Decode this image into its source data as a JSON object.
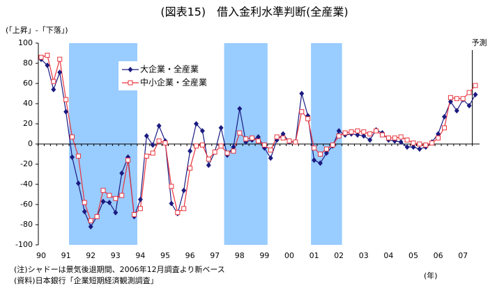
{
  "chart_data": {
    "type": "line",
    "title": "(図表15)　借入金利水準判断(全産業)",
    "y_label": "(「上昇」-「下落」)",
    "x_unit": "(年)",
    "forecast_label": "予測",
    "notes": [
      "(注)シャドーは景気後退期間、2006年12月調査より新ベース",
      "(資料)日本銀行「企業短期経済観測調査」"
    ],
    "categories": [
      "90",
      null,
      null,
      null,
      "91",
      null,
      null,
      null,
      "92",
      null,
      null,
      null,
      "93",
      null,
      null,
      null,
      "94",
      null,
      null,
      null,
      "95",
      null,
      null,
      null,
      "96",
      null,
      null,
      null,
      "97",
      null,
      null,
      null,
      "98",
      null,
      null,
      null,
      "99",
      null,
      null,
      null,
      "00",
      null,
      null,
      null,
      "01",
      null,
      null,
      null,
      "02",
      null,
      null,
      null,
      "03",
      null,
      null,
      null,
      "04",
      null,
      null,
      null,
      "05",
      null,
      null,
      null,
      "06",
      null,
      null,
      null,
      "07",
      null,
      null
    ],
    "series": [
      {
        "name": "大企業・全産業",
        "color": "#1a1a80",
        "marker": "diamond",
        "values": [
          84,
          78,
          54,
          71,
          32,
          -13,
          -39,
          -67,
          -82,
          -72,
          -57,
          -58,
          -68,
          -29,
          -13,
          -72,
          -55,
          8,
          -1,
          18,
          3,
          -59,
          -69,
          -46,
          -7,
          20,
          13,
          -21,
          -8,
          16,
          -11,
          -3,
          35,
          2,
          4,
          7,
          -4,
          -14,
          4,
          10,
          2,
          2,
          50,
          28,
          -16,
          -19,
          -9,
          -2,
          13,
          9,
          10,
          9,
          8,
          4,
          14,
          11,
          4,
          3,
          2,
          -3,
          -3,
          -5,
          -3,
          2,
          10,
          27,
          42,
          33,
          44,
          38,
          49
        ]
      },
      {
        "name": "中小企業・全産業",
        "color": "#e8323c",
        "marker": "square",
        "values": [
          86,
          88,
          62,
          84,
          44,
          7,
          -12,
          -58,
          -76,
          -72,
          -46,
          -51,
          -54,
          -51,
          -16,
          -70,
          -64,
          -12,
          -9,
          3,
          1,
          -42,
          -68,
          -64,
          -24,
          -2,
          -1,
          -15,
          -8,
          -2,
          -9,
          -7,
          11,
          5,
          6,
          3,
          -1,
          -6,
          7,
          6,
          3,
          2,
          32,
          25,
          -4,
          -10,
          -5,
          -1,
          8,
          11,
          12,
          13,
          12,
          10,
          13,
          9,
          6,
          6,
          7,
          4,
          1,
          0,
          -1,
          1,
          6,
          16,
          46,
          45,
          45,
          51,
          58
        ]
      }
    ],
    "shaded_periods": [
      [
        4.5,
        15.5
      ],
      [
        29.5,
        36.5
      ],
      [
        43.5,
        48.5
      ]
    ],
    "shade_color": "#99ccff",
    "ylim": [
      -100,
      100
    ],
    "yticks": [
      -100,
      -80,
      -60,
      -40,
      -20,
      0,
      20,
      40,
      60,
      80,
      100
    ]
  }
}
